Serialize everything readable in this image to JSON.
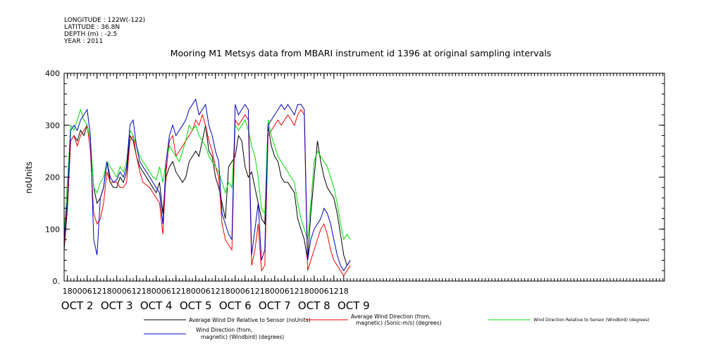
{
  "header": {
    "longitude": "LONGITUDE : 122W(-122)",
    "latitude": "LATITUDE : 36.8N",
    "depth": "DEPTH (m) : -2.5",
    "year": "YEAR : 2011"
  },
  "chart_data": {
    "type": "line",
    "title": "Mooring M1 Metsys data from MBARI instrument id 1396 at original sampling intervals",
    "ylabel": "noUnits",
    "xlabel": "",
    "ylim": [
      0,
      400
    ],
    "yticks": [
      0,
      100,
      200,
      300,
      400
    ],
    "ytick_labels": [
      "0.",
      "100",
      "200",
      "300",
      "400"
    ],
    "xlim_hours": [
      -8,
      357
    ],
    "x_ticks": [
      {
        "hour": -6,
        "label": "18"
      },
      {
        "hour": 0,
        "label": "00"
      },
      {
        "hour": 6,
        "label": "06"
      },
      {
        "hour": 12,
        "label": "12"
      },
      {
        "hour": 18,
        "label": "18"
      },
      {
        "hour": 24,
        "label": "00"
      },
      {
        "hour": 30,
        "label": "06"
      },
      {
        "hour": 36,
        "label": "12"
      },
      {
        "hour": 42,
        "label": "18"
      },
      {
        "hour": 48,
        "label": "00"
      },
      {
        "hour": 54,
        "label": "06"
      },
      {
        "hour": 60,
        "label": "12"
      },
      {
        "hour": 66,
        "label": "18"
      },
      {
        "hour": 72,
        "label": "00"
      },
      {
        "hour": 78,
        "label": "06"
      },
      {
        "hour": 84,
        "label": "12"
      },
      {
        "hour": 90,
        "label": "18"
      },
      {
        "hour": 96,
        "label": "00"
      },
      {
        "hour": 102,
        "label": "06"
      },
      {
        "hour": 108,
        "label": "12"
      },
      {
        "hour": 114,
        "label": "18"
      },
      {
        "hour": 120,
        "label": "00"
      },
      {
        "hour": 126,
        "label": "06"
      },
      {
        "hour": 132,
        "label": "12"
      },
      {
        "hour": 138,
        "label": "18"
      },
      {
        "hour": 144,
        "label": "00"
      },
      {
        "hour": 150,
        "label": "06"
      },
      {
        "hour": 156,
        "label": "12"
      },
      {
        "hour": 162,
        "label": "18"
      }
    ],
    "day_labels": [
      {
        "hour": 0,
        "label": "OCT 2"
      },
      {
        "hour": 24,
        "label": "OCT 3"
      },
      {
        "hour": 48,
        "label": "OCT 4"
      },
      {
        "hour": 72,
        "label": "OCT 5"
      },
      {
        "hour": 96,
        "label": "OCT 6"
      },
      {
        "hour": 120,
        "label": "OCT 7"
      },
      {
        "hour": 144,
        "label": "OCT 8"
      },
      {
        "hour": 168,
        "label": "OCT 9"
      }
    ],
    "grid": false,
    "legend_position": "bottom",
    "series": [
      {
        "name": "Average Wind Dir Relative to Sensor (noUnits)",
        "color": "#000000",
        "x": [
          -8,
          -6,
          -4,
          -2,
          0,
          2,
          4,
          6,
          8,
          10,
          12,
          14,
          16,
          18,
          20,
          22,
          24,
          26,
          28,
          30,
          32,
          34,
          36,
          38,
          40,
          42,
          44,
          46,
          48,
          50,
          52,
          54,
          56,
          58,
          60,
          62,
          64,
          66,
          68,
          70,
          72,
          74,
          76,
          78,
          80,
          82,
          84,
          86,
          88,
          90,
          92,
          94,
          96,
          98,
          100,
          102,
          104,
          106,
          108,
          110,
          112,
          114,
          116,
          118,
          120,
          122,
          124,
          126,
          128,
          130,
          132,
          134,
          136,
          138,
          140,
          142,
          144,
          146,
          148,
          150,
          152,
          154,
          156,
          158,
          160,
          162,
          164,
          166
        ],
        "y": [
          60,
          140,
          270,
          280,
          270,
          290,
          280,
          300,
          270,
          180,
          150,
          160,
          180,
          230,
          190,
          180,
          180,
          200,
          190,
          210,
          280,
          270,
          240,
          220,
          210,
          200,
          190,
          180,
          170,
          190,
          130,
          200,
          220,
          230,
          210,
          200,
          190,
          200,
          230,
          240,
          250,
          240,
          270,
          300,
          250,
          240,
          200,
          180,
          150,
          120,
          220,
          230,
          240,
          280,
          270,
          220,
          200,
          210,
          180,
          150,
          120,
          110,
          300,
          260,
          240,
          230,
          200,
          190,
          190,
          180,
          170,
          120,
          100,
          80,
          40,
          130,
          200,
          270,
          230,
          200,
          180,
          170,
          160,
          130,
          90,
          50,
          30,
          40
        ]
      },
      {
        "name": "Average Wind Direction (from, magnetic) (Sonic-m/s) (degrees)",
        "color": "#ff0000",
        "x": [
          -8,
          -6,
          -4,
          -2,
          0,
          2,
          4,
          6,
          8,
          10,
          12,
          14,
          16,
          18,
          20,
          22,
          24,
          26,
          28,
          30,
          32,
          34,
          36,
          38,
          40,
          42,
          44,
          46,
          48,
          50,
          52,
          54,
          56,
          58,
          60,
          62,
          64,
          66,
          68,
          70,
          72,
          74,
          76,
          78,
          80,
          82,
          84,
          86,
          88,
          90,
          92,
          94,
          96,
          98,
          100,
          102,
          104,
          106,
          108,
          110,
          112,
          114,
          116,
          118,
          120,
          122,
          124,
          126,
          128,
          130,
          132,
          134,
          136,
          138,
          140,
          142,
          144,
          146,
          148,
          150,
          152,
          154,
          156,
          158,
          160,
          162,
          164,
          166
        ],
        "y": [
          70,
          150,
          270,
          280,
          260,
          280,
          290,
          300,
          250,
          130,
          110,
          120,
          150,
          210,
          190,
          190,
          190,
          180,
          180,
          190,
          270,
          280,
          240,
          210,
          190,
          185,
          180,
          170,
          160,
          150,
          90,
          210,
          270,
          280,
          240,
          250,
          260,
          270,
          280,
          290,
          310,
          300,
          320,
          300,
          270,
          250,
          220,
          200,
          110,
          80,
          70,
          60,
          310,
          300,
          310,
          320,
          310,
          30,
          60,
          110,
          20,
          30,
          280,
          290,
          300,
          310,
          300,
          310,
          320,
          310,
          300,
          320,
          330,
          320,
          20,
          40,
          60,
          80,
          100,
          110,
          90,
          60,
          40,
          30,
          20,
          10,
          20,
          30
        ]
      },
      {
        "name": "Wind Direction Relative to Sensor (Windbird) (degrees)",
        "color": "#00e000",
        "x": [
          -8,
          -6,
          -4,
          -2,
          0,
          2,
          4,
          6,
          8,
          10,
          12,
          14,
          16,
          18,
          20,
          22,
          24,
          26,
          28,
          30,
          32,
          34,
          36,
          38,
          40,
          42,
          44,
          46,
          48,
          50,
          52,
          54,
          56,
          58,
          60,
          62,
          64,
          66,
          68,
          70,
          72,
          74,
          76,
          78,
          80,
          82,
          84,
          86,
          88,
          90,
          92,
          94,
          96,
          98,
          100,
          102,
          104,
          106,
          108,
          110,
          112,
          114,
          116,
          118,
          120,
          122,
          124,
          126,
          128,
          130,
          132,
          134,
          136,
          138,
          140,
          142,
          144,
          146,
          148,
          150,
          152,
          154,
          156,
          158,
          160,
          162,
          164,
          166
        ],
        "y": [
          90,
          190,
          300,
          290,
          310,
          330,
          310,
          300,
          270,
          180,
          170,
          190,
          200,
          230,
          220,
          210,
          200,
          220,
          210,
          230,
          290,
          280,
          260,
          240,
          230,
          220,
          210,
          200,
          195,
          220,
          190,
          230,
          260,
          250,
          240,
          230,
          250,
          270,
          300,
          290,
          300,
          280,
          270,
          260,
          240,
          230,
          220,
          210,
          190,
          170,
          190,
          180,
          300,
          290,
          300,
          310,
          290,
          260,
          240,
          200,
          140,
          130,
          310,
          280,
          260,
          240,
          230,
          220,
          210,
          200,
          190,
          150,
          120,
          100,
          80,
          150,
          230,
          250,
          240,
          230,
          220,
          200,
          180,
          150,
          110,
          80,
          90,
          80
        ]
      },
      {
        "name": "Wind Direction (from, magnetic) (Windbird) (degrees)",
        "color": "#0000cc",
        "x": [
          -8,
          -6,
          -4,
          -2,
          0,
          2,
          4,
          6,
          8,
          10,
          12,
          14,
          16,
          18,
          20,
          22,
          24,
          26,
          28,
          30,
          32,
          34,
          36,
          38,
          40,
          42,
          44,
          46,
          48,
          50,
          52,
          54,
          56,
          58,
          60,
          62,
          64,
          66,
          68,
          70,
          72,
          74,
          76,
          78,
          80,
          82,
          84,
          86,
          88,
          90,
          92,
          94,
          96,
          98,
          100,
          102,
          104,
          106,
          108,
          110,
          112,
          114,
          116,
          118,
          120,
          122,
          124,
          126,
          128,
          130,
          132,
          134,
          136,
          138,
          140,
          142,
          144,
          146,
          148,
          150,
          152,
          154,
          156,
          158,
          160,
          162,
          164,
          166
        ],
        "y": [
          80,
          160,
          290,
          300,
          290,
          310,
          320,
          330,
          280,
          80,
          50,
          160,
          180,
          230,
          200,
          190,
          195,
          210,
          200,
          220,
          300,
          310,
          260,
          230,
          220,
          210,
          200,
          190,
          180,
          170,
          110,
          230,
          280,
          300,
          280,
          290,
          300,
          310,
          330,
          340,
          350,
          320,
          330,
          340,
          300,
          280,
          250,
          230,
          130,
          110,
          90,
          80,
          340,
          320,
          330,
          340,
          330,
          50,
          100,
          150,
          40,
          60,
          300,
          310,
          320,
          330,
          340,
          330,
          340,
          330,
          320,
          340,
          340,
          330,
          40,
          80,
          100,
          110,
          120,
          140,
          130,
          110,
          80,
          50,
          30,
          20,
          30,
          40
        ]
      }
    ]
  }
}
